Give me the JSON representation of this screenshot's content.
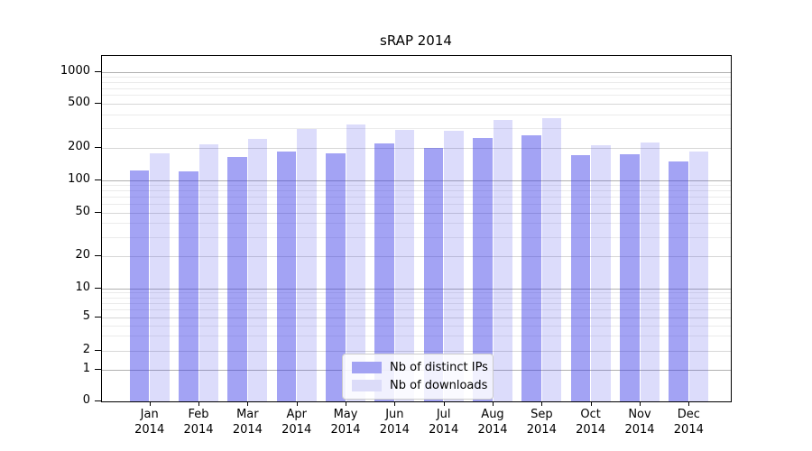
{
  "chart_data": {
    "type": "bar",
    "title": "sRAP 2014",
    "categories": [
      "Jan",
      "Feb",
      "Mar",
      "Apr",
      "May",
      "Jun",
      "Jul",
      "Aug",
      "Sep",
      "Oct",
      "Nov",
      "Dec"
    ],
    "year": "2014",
    "series": [
      {
        "name": "Nb of distinct IPs",
        "color": "#a3a3f3",
        "values": [
          122,
          120,
          164,
          184,
          178,
          220,
          200,
          245,
          258,
          171,
          174,
          150
        ]
      },
      {
        "name": "Nb of downloads",
        "color": "#dcdcf9",
        "values": [
          177,
          214,
          239,
          295,
          325,
          290,
          283,
          353,
          367,
          211,
          222,
          184
        ]
      }
    ],
    "xlabel": "",
    "ylabel": "",
    "y_ticks": [
      0,
      1,
      2,
      5,
      10,
      20,
      50,
      100,
      200,
      500,
      1000
    ],
    "y_scale": "symlog",
    "ylim": [
      0,
      1400
    ],
    "grid": true,
    "grid_minor_ticks": [
      3,
      4,
      6,
      7,
      8,
      9,
      30,
      40,
      60,
      70,
      80,
      90,
      300,
      400,
      600,
      700,
      800,
      900
    ],
    "legend_position": "lower-center",
    "x_tick_style": "two-line month/year"
  }
}
